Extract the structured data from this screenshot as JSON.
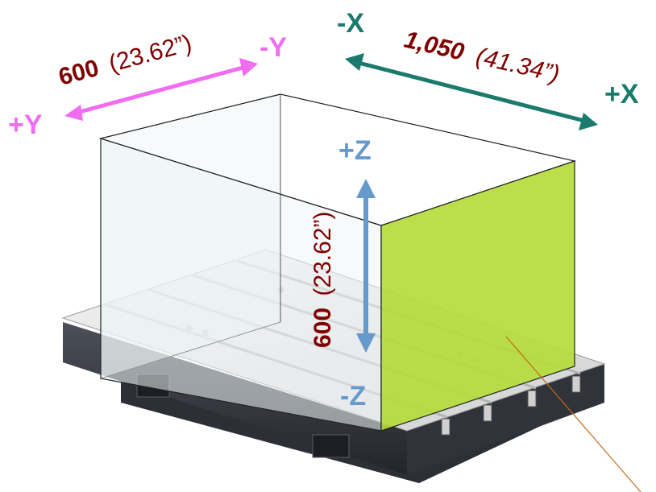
{
  "y_axis": {
    "plus_label": "+Y",
    "minus_label": "-Y",
    "dimension_value": "600",
    "dimension_inches": "(23.62”)",
    "color": "#f06cf0"
  },
  "x_axis": {
    "plus_label": "+X",
    "minus_label": "-X",
    "dimension_value": "1,050",
    "dimension_inches": "(41.34”)",
    "color": "#1a7a6e"
  },
  "z_axis": {
    "plus_label": "+Z",
    "minus_label": "-Z",
    "dimension_value": "600",
    "dimension_inches": "(23.62”)",
    "color": "#6699cc"
  },
  "colors": {
    "dimension_text": "#800000",
    "work_envelope_side": "#b5dc3c",
    "work_envelope_glass": "#e6f3f3",
    "table_top": "#e5e5e5",
    "table_base": "#3a3d45",
    "leader_line": "#c26a1a"
  },
  "icons": {
    "table": "machine-table-icon"
  }
}
